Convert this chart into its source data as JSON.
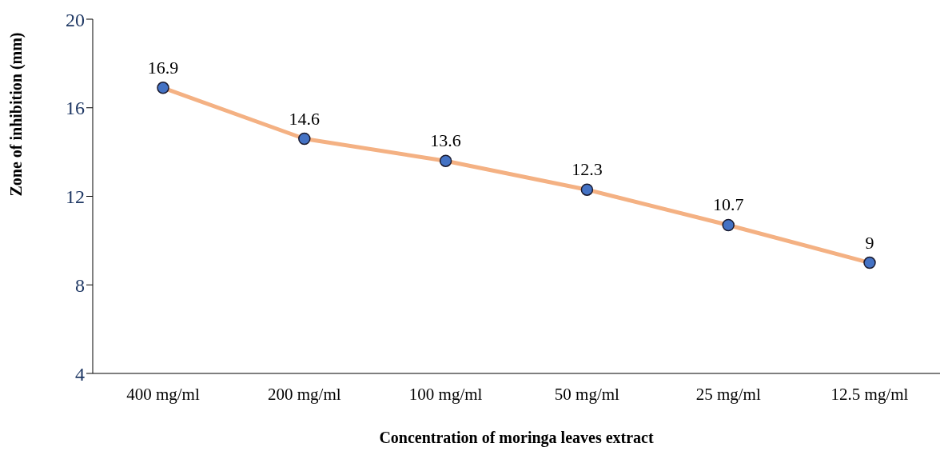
{
  "chart_data": {
    "type": "line",
    "xlabel": "Concentration of moringa leaves extract",
    "ylabel": "Zone of inhibition  (mm)",
    "categories": [
      "400 mg/ml",
      "200 mg/ml",
      "100 mg/ml",
      "50 mg/ml",
      "25 mg/ml",
      "12.5 mg/ml"
    ],
    "series": [
      {
        "color": "#f4b183",
        "values": [
          16.9,
          14.6,
          13.6,
          12.3,
          10.7,
          9
        ]
      }
    ],
    "ylim": [
      4,
      20
    ],
    "yticks": [
      4,
      8,
      12,
      16,
      20
    ],
    "grid": false,
    "legend": false,
    "marker": "circle",
    "line_style": "solid",
    "data_labels": true
  }
}
